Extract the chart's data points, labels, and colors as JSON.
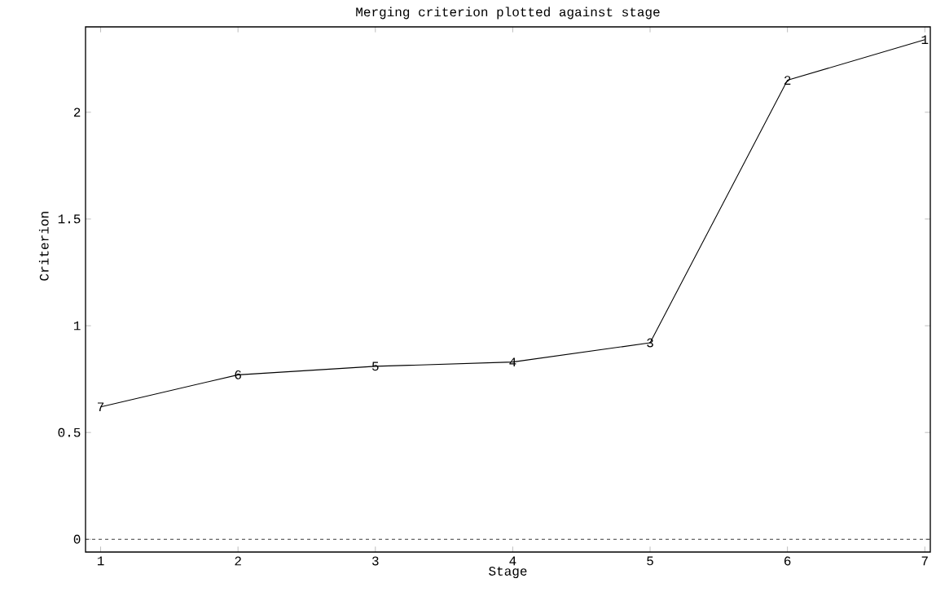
{
  "chart_data": {
    "type": "line",
    "title": "Merging criterion plotted against stage",
    "xlabel": "Stage",
    "ylabel": "Criterion",
    "x": [
      1,
      2,
      3,
      4,
      5,
      6,
      7
    ],
    "series": [
      {
        "color": "#000000",
        "values": [
          0.62,
          0.77,
          0.81,
          0.83,
          0.92,
          2.15,
          2.34
        ]
      }
    ],
    "xlim": [
      0.89,
      7.04
    ],
    "ylim": [
      -0.06,
      2.4
    ],
    "xticks": [
      1,
      2,
      3,
      4,
      5,
      6,
      7
    ],
    "yticks": [
      0,
      0.5,
      1,
      1.5,
      2
    ],
    "ref_lines": [
      {
        "axis": "y",
        "value": 0,
        "line_style": "dashed"
      }
    ],
    "annotations": [
      {
        "text": "7",
        "x": 1,
        "y": 0.62
      },
      {
        "text": "6",
        "x": 2,
        "y": 0.77
      },
      {
        "text": "5",
        "x": 3,
        "y": 0.81
      },
      {
        "text": "4",
        "x": 4,
        "y": 0.83
      },
      {
        "text": "3",
        "x": 5,
        "y": 0.92
      },
      {
        "text": "2",
        "x": 6,
        "y": 2.15
      },
      {
        "text": "1",
        "x": 7,
        "y": 2.34
      }
    ],
    "grid": false,
    "marker": "none",
    "line_style": "solid"
  }
}
